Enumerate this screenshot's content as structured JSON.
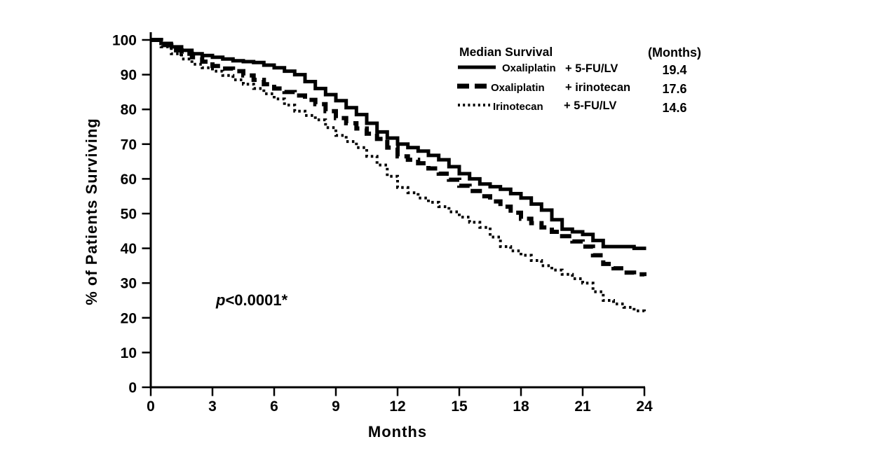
{
  "chart_data": {
    "type": "line",
    "subtype": "kaplan-meier-step",
    "title": "",
    "xlabel": "Months",
    "ylabel": "% of Patients Surviving",
    "xlim": [
      0,
      24
    ],
    "ylim": [
      0,
      100
    ],
    "x_ticks": [
      0,
      3,
      6,
      9,
      12,
      15,
      18,
      21,
      24
    ],
    "y_ticks": [
      0,
      10,
      20,
      30,
      40,
      50,
      60,
      70,
      80,
      90,
      100
    ],
    "grid": false,
    "color": "#000000",
    "background": "#ffffff",
    "legend": {
      "position": "top-right",
      "header": "Median Survival",
      "unit_header": "(Months)"
    },
    "annotation": {
      "text": "p<0.0001*",
      "p_symbol": "p",
      "p_rest": "<0.0001*"
    },
    "x_months": [
      0,
      1,
      2,
      3,
      4,
      5,
      6,
      7,
      8,
      9,
      10,
      11,
      12,
      13,
      14,
      15,
      16,
      17,
      18,
      19,
      20,
      21,
      22,
      23,
      24
    ],
    "series": [
      {
        "id": "oxaliplatin-5fulv",
        "name": "Oxaliplatin",
        "suffix": "+ 5-FU/LV",
        "median_months": "19.4",
        "line_style": "solid",
        "values": [
          100,
          98,
          96,
          95,
          94,
          93.5,
          92,
          90,
          86,
          82.5,
          78.5,
          73.5,
          70,
          68,
          65.5,
          61.5,
          58.5,
          57,
          54.5,
          51,
          45.5,
          44,
          40.5,
          40.5,
          39.5
        ]
      },
      {
        "id": "oxaliplatin-irinotecan",
        "name": "Oxaliplatin",
        "suffix": "+ irinotecan",
        "median_months": "17.6",
        "line_style": "dashed",
        "values": [
          100,
          97,
          95,
          92.5,
          91,
          88.5,
          86,
          84,
          81.5,
          77.5,
          74.5,
          71.5,
          66.5,
          64.5,
          61.5,
          58,
          55,
          52,
          48.5,
          46,
          43.5,
          40.5,
          35.5,
          33,
          32
        ]
      },
      {
        "id": "irinotecan-5fulv",
        "name": "Irinotecan",
        "suffix": "+ 5-FU/LV",
        "median_months": "14.6",
        "line_style": "dotted",
        "values": [
          100,
          96,
          93,
          91,
          88.5,
          86,
          83,
          79.5,
          77,
          72.5,
          69,
          64,
          57.5,
          54.5,
          52,
          49,
          46,
          40.5,
          38,
          35,
          32.5,
          30,
          25,
          23,
          21
        ]
      }
    ]
  }
}
